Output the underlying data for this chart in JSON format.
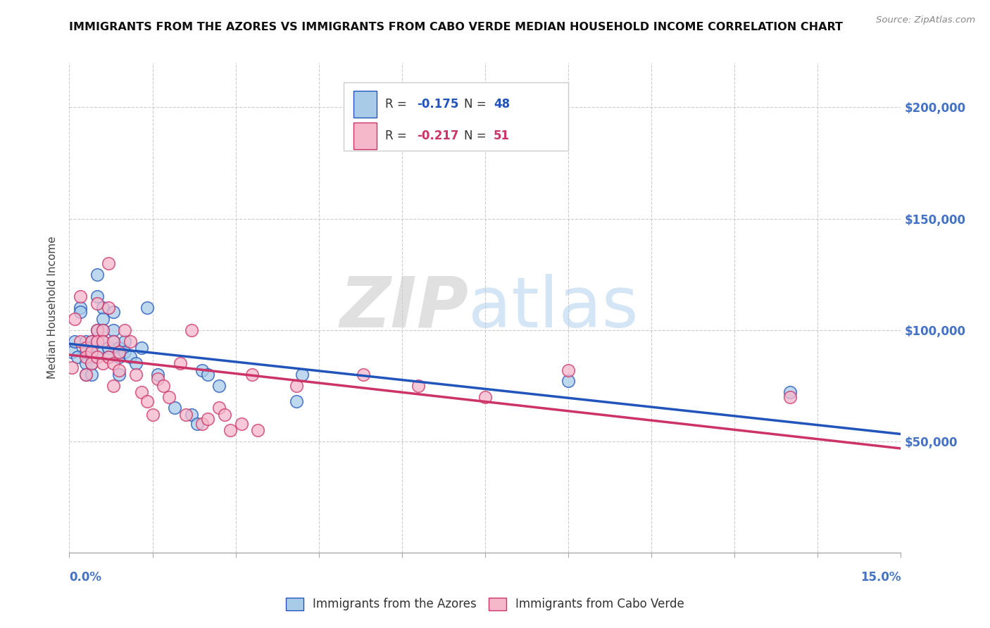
{
  "title": "IMMIGRANTS FROM THE AZORES VS IMMIGRANTS FROM CABO VERDE MEDIAN HOUSEHOLD INCOME CORRELATION CHART",
  "source": "Source: ZipAtlas.com",
  "ylabel": "Median Household Income",
  "yticks": [
    0,
    50000,
    100000,
    150000,
    200000
  ],
  "ytick_labels": [
    "",
    "$50,000",
    "$100,000",
    "$150,000",
    "$200,000"
  ],
  "xmin": 0.0,
  "xmax": 0.15,
  "ymin": 0,
  "ymax": 220000,
  "series1_label": "Immigrants from the Azores",
  "series2_label": "Immigrants from Cabo Verde",
  "series1_color": "#a8cce8",
  "series2_color": "#f5b8cb",
  "line1_color": "#2255bb",
  "line2_color": "#cc3366",
  "tick_label_color": "#4472c4",
  "title_color": "#111111",
  "background_color": "#ffffff",
  "grid_color": "#cccccc",
  "azores_x": [
    0.0005,
    0.001,
    0.0015,
    0.002,
    0.002,
    0.003,
    0.003,
    0.003,
    0.003,
    0.004,
    0.004,
    0.004,
    0.004,
    0.004,
    0.005,
    0.005,
    0.005,
    0.005,
    0.005,
    0.006,
    0.006,
    0.006,
    0.006,
    0.007,
    0.007,
    0.008,
    0.008,
    0.008,
    0.009,
    0.009,
    0.009,
    0.01,
    0.01,
    0.011,
    0.012,
    0.013,
    0.014,
    0.016,
    0.019,
    0.022,
    0.023,
    0.024,
    0.025,
    0.027,
    0.041,
    0.042,
    0.09,
    0.13
  ],
  "azores_y": [
    90000,
    95000,
    88000,
    110000,
    108000,
    95000,
    90000,
    85000,
    80000,
    95000,
    92000,
    88000,
    85000,
    80000,
    125000,
    115000,
    100000,
    95000,
    90000,
    110000,
    105000,
    100000,
    95000,
    92000,
    88000,
    108000,
    100000,
    95000,
    92000,
    88000,
    80000,
    95000,
    90000,
    88000,
    85000,
    92000,
    110000,
    80000,
    65000,
    62000,
    58000,
    82000,
    80000,
    75000,
    68000,
    80000,
    77000,
    72000
  ],
  "caboverde_x": [
    0.0005,
    0.001,
    0.002,
    0.002,
    0.003,
    0.003,
    0.003,
    0.004,
    0.004,
    0.004,
    0.005,
    0.005,
    0.005,
    0.005,
    0.006,
    0.006,
    0.006,
    0.007,
    0.007,
    0.007,
    0.008,
    0.008,
    0.008,
    0.009,
    0.009,
    0.01,
    0.011,
    0.012,
    0.013,
    0.014,
    0.015,
    0.016,
    0.017,
    0.018,
    0.02,
    0.021,
    0.022,
    0.024,
    0.025,
    0.027,
    0.028,
    0.029,
    0.031,
    0.033,
    0.034,
    0.041,
    0.053,
    0.063,
    0.075,
    0.09,
    0.13
  ],
  "caboverde_y": [
    83000,
    105000,
    115000,
    95000,
    92000,
    88000,
    80000,
    95000,
    90000,
    85000,
    112000,
    100000,
    95000,
    88000,
    100000,
    95000,
    85000,
    130000,
    110000,
    88000,
    95000,
    85000,
    75000,
    90000,
    82000,
    100000,
    95000,
    80000,
    72000,
    68000,
    62000,
    78000,
    75000,
    70000,
    85000,
    62000,
    100000,
    58000,
    60000,
    65000,
    62000,
    55000,
    58000,
    80000,
    55000,
    75000,
    80000,
    75000,
    70000,
    82000,
    70000
  ]
}
